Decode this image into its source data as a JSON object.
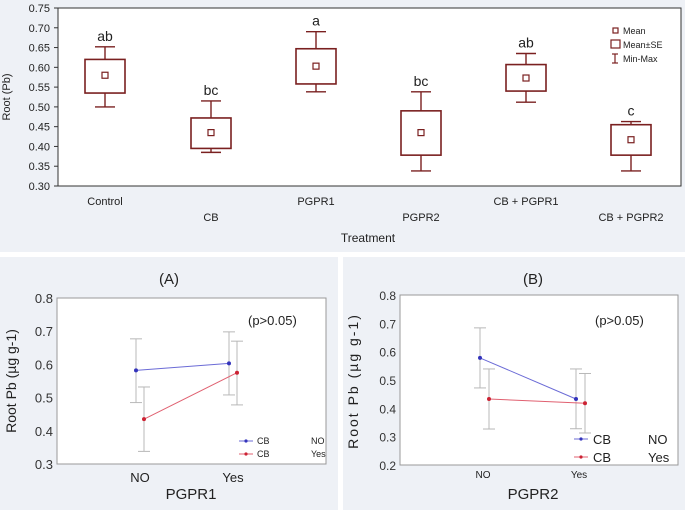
{
  "chart_data": [
    {
      "type": "box",
      "xlabel": "Treatment",
      "ylabel": "Root (Pb)",
      "ylim": [
        0.3,
        0.75
      ],
      "yticks": [
        "0.30",
        "0.35",
        "0.40",
        "0.45",
        "0.50",
        "0.55",
        "0.60",
        "0.65",
        "0.70",
        "0.75"
      ],
      "categories": [
        "Control",
        "CB",
        "PGPR1",
        "PGPR2",
        "CB + PGPR1",
        "CB + PGPR2"
      ],
      "series": [
        {
          "name": "Control",
          "mean": 0.58,
          "se_low": 0.535,
          "se_high": 0.62,
          "min": 0.5,
          "max": 0.652,
          "letter": "ab"
        },
        {
          "name": "CB",
          "mean": 0.435,
          "se_low": 0.395,
          "se_high": 0.472,
          "min": 0.385,
          "max": 0.515,
          "letter": "bc"
        },
        {
          "name": "PGPR1",
          "mean": 0.603,
          "se_low": 0.558,
          "se_high": 0.647,
          "min": 0.538,
          "max": 0.69,
          "letter": "a"
        },
        {
          "name": "PGPR2",
          "mean": 0.435,
          "se_low": 0.378,
          "se_high": 0.49,
          "min": 0.338,
          "max": 0.538,
          "letter": "bc"
        },
        {
          "name": "CB + PGPR1",
          "mean": 0.573,
          "se_low": 0.54,
          "se_high": 0.607,
          "min": 0.512,
          "max": 0.635,
          "letter": "ab"
        },
        {
          "name": "CB + PGPR2",
          "mean": 0.417,
          "se_low": 0.378,
          "se_high": 0.455,
          "min": 0.338,
          "max": 0.463,
          "letter": "c"
        }
      ],
      "legend": [
        "Mean",
        "Mean±SE",
        "Min-Max"
      ],
      "color": "#7a2020"
    },
    {
      "type": "line",
      "panel_title": "(A)",
      "xlabel": "PGPR1",
      "ylabel": "Root Pb (µg g-1)",
      "ylim": [
        0.3,
        0.8
      ],
      "yticks": [
        "0.3",
        "0.4",
        "0.5",
        "0.6",
        "0.7",
        "0.8"
      ],
      "categories": [
        "NO",
        "Yes"
      ],
      "annotation": "(p>0.05)",
      "series": [
        {
          "name": "CB",
          "level": "NO",
          "color": "#6b6bd6",
          "values": [
            0.582,
            0.603
          ],
          "err_low": [
            0.485,
            0.508
          ],
          "err_high": [
            0.677,
            0.698
          ]
        },
        {
          "name": "CB",
          "level": "Yes",
          "color": "#e06070",
          "values": [
            0.435,
            0.575
          ],
          "err_low": [
            0.338,
            0.478
          ],
          "err_high": [
            0.532,
            0.67
          ]
        }
      ]
    },
    {
      "type": "line",
      "panel_title": "(B)",
      "xlabel": "PGPR2",
      "ylabel": "Root Pb (µg g-1)",
      "ylim": [
        0.2,
        0.8
      ],
      "yticks": [
        "0.2",
        "0.3",
        "0.4",
        "0.5",
        "0.6",
        "0.7",
        "0.8"
      ],
      "categories": [
        "NO",
        "Yes"
      ],
      "annotation": "(p>0.05)",
      "series": [
        {
          "name": "CB",
          "level": "NO",
          "color": "#6b6bd6",
          "values": [
            0.578,
            0.433
          ],
          "err_low": [
            0.472,
            0.328
          ],
          "err_high": [
            0.684,
            0.539
          ]
        },
        {
          "name": "CB",
          "level": "Yes",
          "color": "#e06070",
          "values": [
            0.433,
            0.418
          ],
          "err_low": [
            0.327,
            0.313
          ],
          "err_high": [
            0.539,
            0.523
          ]
        }
      ]
    }
  ]
}
